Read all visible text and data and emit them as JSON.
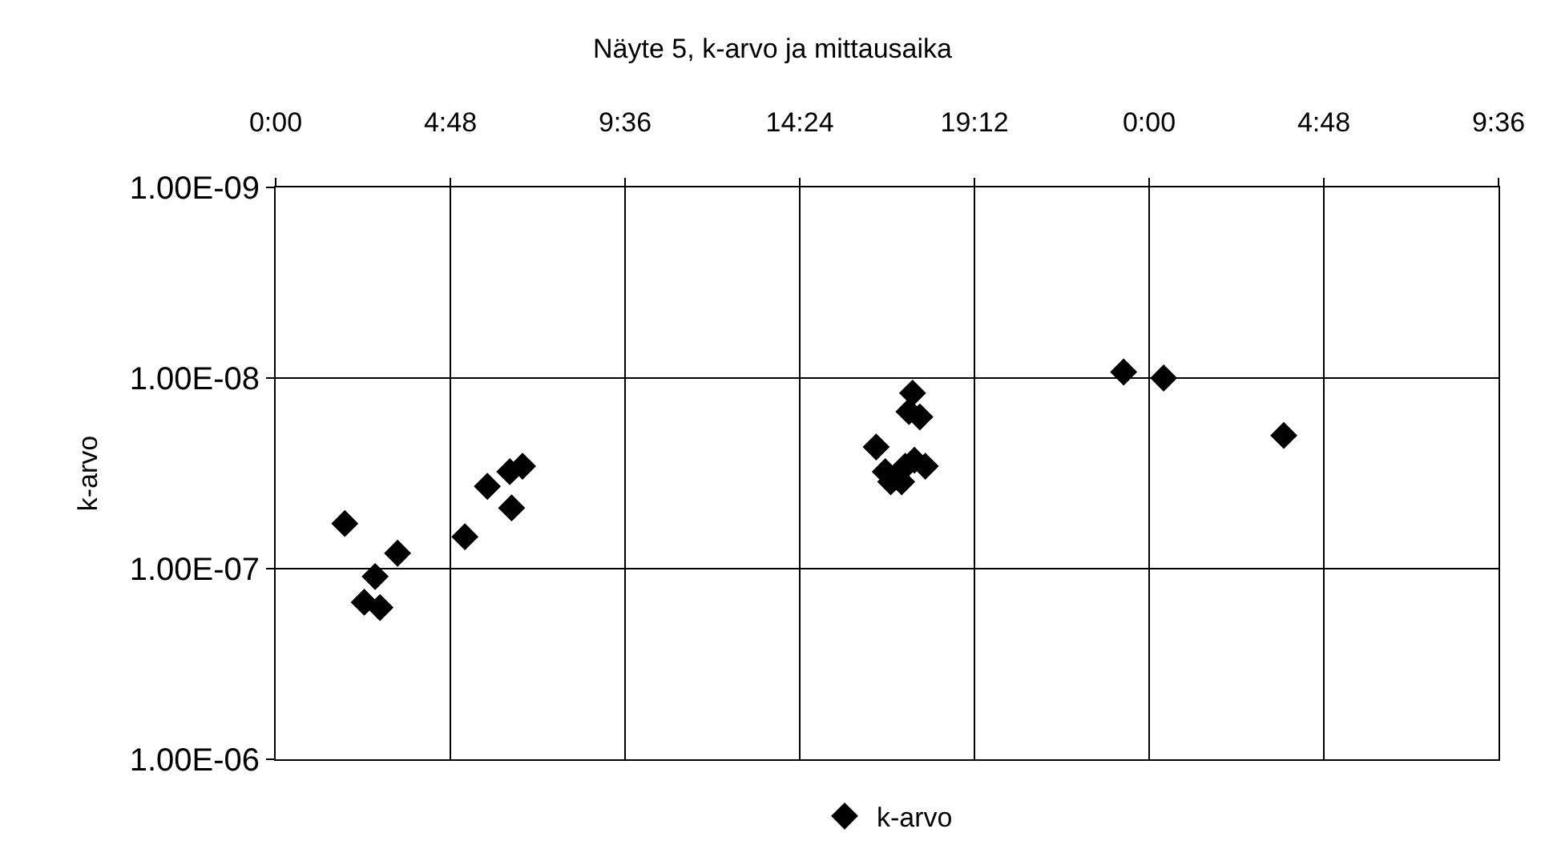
{
  "chart_data": {
    "type": "scatter",
    "title": "Näyte 5, k-arvo ja mittausaika",
    "ylabel": "k-arvo",
    "x": [
      "--01-01T01:54",
      "--01-01T02:26",
      "--01-01T02:44",
      "--01-01T02:52",
      "--01-01T03:21",
      "--01-01T05:12",
      "--01-01T05:49",
      "--01-01T06:26",
      "--01-01T06:29",
      "--01-01T06:47",
      "--01-01T16:30",
      "--01-01T16:45",
      "--01-01T16:54",
      "--01-01T17:12",
      "--01-01T17:18",
      "--01-01T17:30",
      "--01-01T17:24",
      "--01-01T17:42",
      "--01-01T17:33",
      "--01-01T17:51",
      "--01-01T23:18",
      "--01-02T00:24",
      "--01-02T03:42"
    ],
    "series": [
      {
        "name": "k-arvo",
        "color": "#000000",
        "values": [
          5.8e-08,
          1.5e-07,
          1.1e-07,
          1.6e-07,
          8.3e-08,
          6.8e-08,
          3.7e-08,
          3.1e-08,
          4.8e-08,
          2.9e-08,
          2.3e-08,
          3.1e-08,
          3.5e-08,
          3.5e-08,
          2.9e-08,
          1.2e-08,
          1.5e-08,
          1.6e-08,
          2.7e-08,
          2.9e-08,
          9.3e-09,
          1e-08,
          2e-08
        ]
      }
    ],
    "xlim": [
      "--01-01T00:00",
      "--01-02T09:36"
    ],
    "xticks": [
      {
        "value": "--01-01T00:00",
        "label": "0:00"
      },
      {
        "value": "--01-01T04:48",
        "label": "4:48"
      },
      {
        "value": "--01-01T09:36",
        "label": "9:36"
      },
      {
        "value": "--01-01T14:24",
        "label": "14:24"
      },
      {
        "value": "--01-01T19:12",
        "label": "19:12"
      },
      {
        "value": "--01-02T00:00",
        "label": "0:00"
      },
      {
        "value": "--01-02T04:48",
        "label": "4:48"
      },
      {
        "value": "--01-02T09:36",
        "label": "9:36"
      }
    ],
    "ylim": [
      1e-06,
      1e-09
    ],
    "yticks": [
      {
        "value": 1e-09,
        "label": "1.00E-09"
      },
      {
        "value": 1e-08,
        "label": "1.00E-08"
      },
      {
        "value": 1e-07,
        "label": "1.00E-07"
      },
      {
        "value": 1e-06,
        "label": "1.00E-06"
      }
    ],
    "log": "y",
    "grid": true,
    "legend": "bottom",
    "marker": "diamond"
  }
}
